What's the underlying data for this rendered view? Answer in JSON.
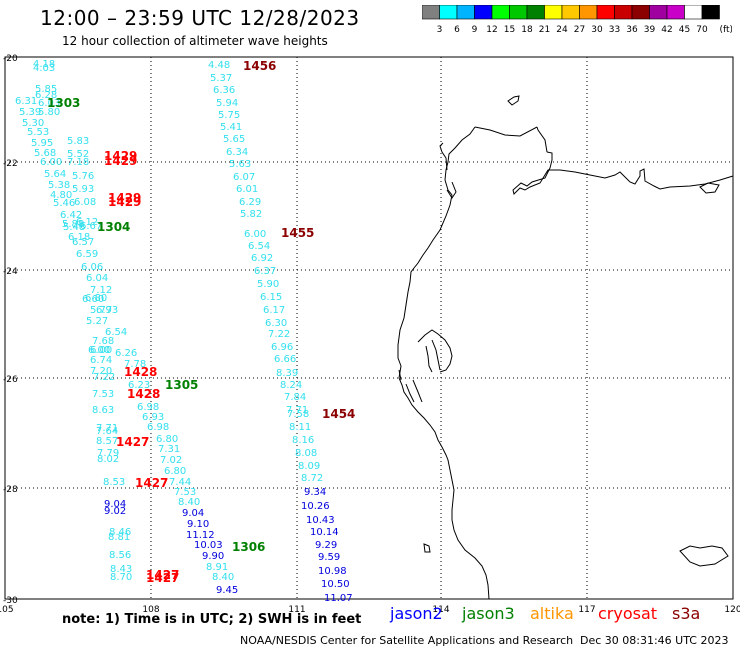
{
  "header": {
    "title": "12:00 – 23:59 UTC 12/28/2023",
    "subtitle": "12 hour collection of altimeter wave heights"
  },
  "scale": {
    "colors": [
      "#808080",
      "#00ffff",
      "#00b4ff",
      "#0000ff",
      "#00ff00",
      "#00c800",
      "#008000",
      "#ffff00",
      "#ffc800",
      "#ff9600",
      "#ff0000",
      "#c80000",
      "#8b0000",
      "#a000a0",
      "#c800c8",
      "#ffffff",
      "#000000"
    ],
    "labels": [
      "3",
      "6",
      "9",
      "12",
      "15",
      "18",
      "21",
      "24",
      "27",
      "30",
      "33",
      "36",
      "39",
      "42",
      "45",
      "70",
      "(ft)"
    ]
  },
  "axes": {
    "lat_labels": [
      "-20",
      "-22",
      "-24",
      "-26",
      "-28",
      "-30"
    ],
    "lon_labels": [
      "105",
      "108",
      "111",
      "114",
      "117",
      "120"
    ]
  },
  "track_colors": {
    "cyan": "#33e0ee",
    "blue": "#0000dd",
    "green": "#008000",
    "red": "#ff0000",
    "maroon": "#8b0000"
  },
  "tracks": {
    "a": {
      "values": [
        "4.18",
        "4.03",
        "5.85",
        "6.28",
        "6.31",
        "6.03",
        "5.39",
        "5.80",
        "5.30",
        "5.53",
        "5.95",
        "5.68",
        "6.00",
        "5.64",
        "5.38",
        "4.80",
        "5.46",
        "6.42",
        "5.88",
        "5.48",
        "6.18",
        "6.57",
        "6.59",
        "6.06",
        "6.04",
        "7.12",
        "6.80",
        "5.77",
        "5.27",
        "6.00",
        "7.68",
        "6.00",
        "6.74",
        "7.20",
        "7.22",
        "7.53",
        "8.63",
        "7.71",
        "7.64",
        "8.57",
        "7.79",
        "8.02",
        "8.53",
        "9.04",
        "9.02",
        "8.46",
        "8.81",
        "8.56",
        "8.43",
        "8.70"
      ]
    },
    "b": {
      "values": [
        "5.83",
        "5.52",
        "7.18",
        "5.76",
        "5.93",
        "6.08",
        "6.12",
        "6.67",
        "6.60",
        "6.93",
        "6.54",
        "6.26",
        "7.78",
        "6.23",
        "6.98",
        "6.93",
        "6.98",
        "6.80",
        "7.31",
        "7.02",
        "6.80",
        "7.44",
        "7.53",
        "8.40",
        "9.04",
        "9.10",
        "11.12",
        "10.03",
        "9.90",
        "8.91",
        "8.40",
        "9.45"
      ]
    },
    "c": {
      "values": [
        "4.48",
        "5.37",
        "6.36",
        "5.94",
        "5.75",
        "5.41",
        "5.65",
        "6.34",
        "5.63",
        "6.07",
        "6.01",
        "6.29",
        "5.82",
        "6.00",
        "6.54",
        "6.92",
        "6.37",
        "5.90",
        "6.15",
        "6.17",
        "6.30",
        "7.22",
        "6.96",
        "6.66",
        "8.39",
        "8.24",
        "7.84",
        "7.71",
        "7.58",
        "8.11",
        "8.16",
        "8.08",
        "8.09",
        "8.72",
        "9.34",
        "10.26",
        "10.43",
        "10.14",
        "9.29",
        "9.59",
        "10.98",
        "10.50",
        "11.07"
      ]
    }
  },
  "passes": [
    "1456",
    "1303",
    "1429",
    "1429",
    "1429",
    "1429",
    "1304",
    "1455",
    "1428",
    "1428",
    "1305",
    "1454",
    "1427",
    "1427",
    "1306",
    "1427",
    "1427"
  ],
  "footer": {
    "note": "note:  1) Time is in UTC;  2) SWH is in feet",
    "sats": [
      {
        "name": "jason2",
        "color": "#0000ff"
      },
      {
        "name": "jason3",
        "color": "#008000"
      },
      {
        "name": "altika",
        "color": "#ff9600"
      },
      {
        "name": "cryosat",
        "color": "#ff0000"
      },
      {
        "name": "s3a",
        "color": "#8b0000"
      }
    ],
    "credit": "NOAA/NESDIS Center for Satellite Applications and Research",
    "timestamp": "Dec 30 08:31:46 UTC 2023"
  }
}
